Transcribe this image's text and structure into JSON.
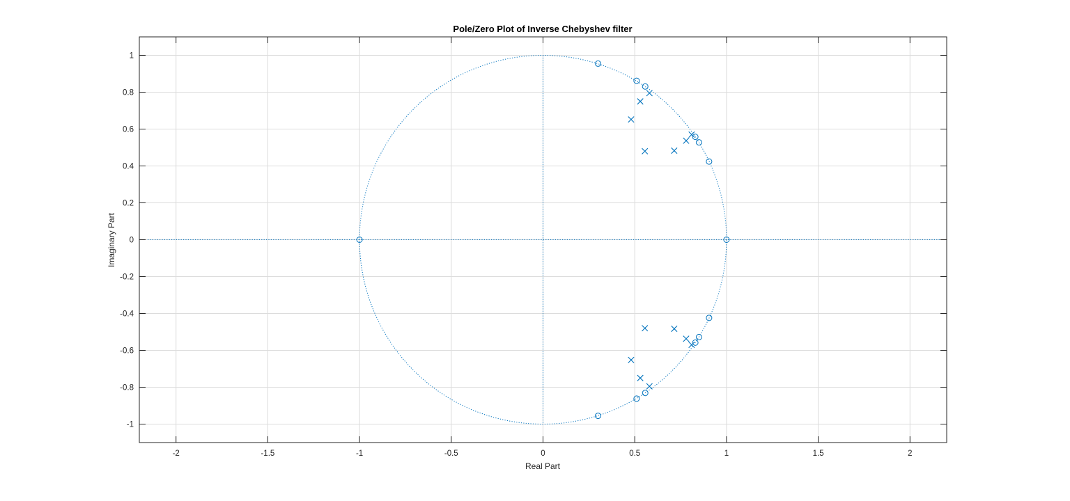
{
  "chart_data": {
    "type": "scatter",
    "title": "Pole/Zero Plot of Inverse Chebyshev filter",
    "xlabel": "Real Part",
    "ylabel": "Imaginary Part",
    "xlim": [
      -2.2,
      2.2
    ],
    "ylim": [
      -1.1,
      1.1
    ],
    "xticks": [
      -2,
      -1.5,
      -1,
      -0.5,
      0,
      0.5,
      1,
      1.5,
      2
    ],
    "xtick_labels": [
      "-2",
      "-1.5",
      "-1",
      "-0.5",
      "0",
      "0.5",
      "1",
      "1.5",
      "2"
    ],
    "yticks": [
      -1,
      -0.8,
      -0.6,
      -0.4,
      -0.2,
      0,
      0.2,
      0.4,
      0.6,
      0.8,
      1
    ],
    "ytick_labels": [
      "-1",
      "-0.8",
      "-0.6",
      "-0.4",
      "-0.2",
      "0",
      "0.2",
      "0.4",
      "0.6",
      "0.8",
      "1"
    ],
    "grid": true,
    "unit_circle": true,
    "colors": {
      "marker": "#0072BD",
      "grid": "#dcdcdc",
      "axes": "#262626",
      "reference": "#0072BD"
    },
    "series": [
      {
        "marker": "o",
        "points": [
          {
            "x": 0.3,
            "y": 0.955
          },
          {
            "x": 0.3,
            "y": -0.955
          },
          {
            "x": 0.51,
            "y": 0.862
          },
          {
            "x": 0.51,
            "y": -0.862
          },
          {
            "x": 0.557,
            "y": 0.831
          },
          {
            "x": 0.557,
            "y": -0.831
          },
          {
            "x": 0.83,
            "y": 0.558
          },
          {
            "x": 0.83,
            "y": -0.558
          },
          {
            "x": 0.85,
            "y": 0.528
          },
          {
            "x": 0.85,
            "y": -0.528
          },
          {
            "x": 0.905,
            "y": 0.424
          },
          {
            "x": 0.905,
            "y": -0.424
          },
          {
            "x": -1.0,
            "y": 0.0
          },
          {
            "x": 1.0,
            "y": 0.0
          }
        ]
      },
      {
        "marker": "x",
        "points": [
          {
            "x": 0.58,
            "y": 0.795
          },
          {
            "x": 0.58,
            "y": -0.795
          },
          {
            "x": 0.53,
            "y": 0.75
          },
          {
            "x": 0.53,
            "y": -0.75
          },
          {
            "x": 0.48,
            "y": 0.652
          },
          {
            "x": 0.48,
            "y": -0.652
          },
          {
            "x": 0.81,
            "y": 0.57
          },
          {
            "x": 0.81,
            "y": -0.57
          },
          {
            "x": 0.78,
            "y": 0.537
          },
          {
            "x": 0.78,
            "y": -0.537
          },
          {
            "x": 0.555,
            "y": 0.48
          },
          {
            "x": 0.555,
            "y": -0.48
          },
          {
            "x": 0.715,
            "y": 0.483
          },
          {
            "x": 0.715,
            "y": -0.483
          }
        ]
      }
    ]
  }
}
